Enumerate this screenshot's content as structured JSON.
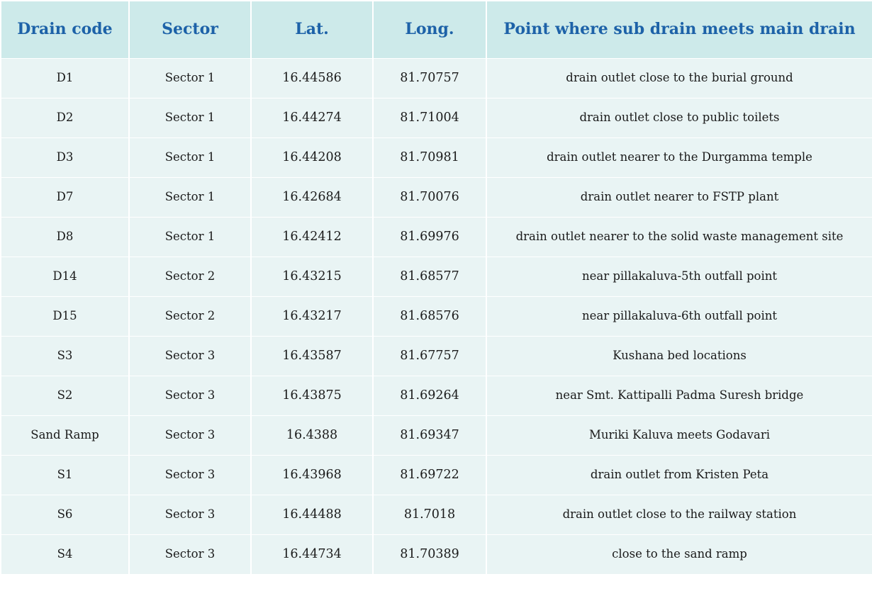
{
  "table": {
    "headers": [
      "Drain code",
      "Sector",
      "Lat.",
      "Long.",
      "Point where sub drain meets main drain"
    ],
    "rows": [
      [
        "D1",
        "Sector 1",
        "16.44586",
        "81.70757",
        "drain outlet close to the burial ground"
      ],
      [
        "D2",
        "Sector 1",
        "16.44274",
        "81.71004",
        "drain outlet close to public toilets"
      ],
      [
        "D3",
        "Sector 1",
        "16.44208",
        "81.70981",
        "drain outlet nearer to the Durgamma temple"
      ],
      [
        "D7",
        "Sector 1",
        "16.42684",
        "81.70076",
        "drain outlet nearer to FSTP plant"
      ],
      [
        "D8",
        "Sector 1",
        "16.42412",
        "81.69976",
        "drain outlet nearer to the solid waste management site"
      ],
      [
        "D14",
        "Sector 2",
        "16.43215",
        "81.68577",
        "near pillakaluva-5th outfall point"
      ],
      [
        "D15",
        "Sector 2",
        "16.43217",
        "81.68576",
        "near pillakaluva-6th outfall point"
      ],
      [
        "S3",
        "Sector 3",
        "16.43587",
        "81.67757",
        "Kushana bed locations"
      ],
      [
        "S2",
        "Sector 3",
        "16.43875",
        "81.69264",
        "near Smt. Kattipalli Padma Suresh bridge"
      ],
      [
        "Sand Ramp",
        "Sector 3",
        "16.4388",
        "81.69347",
        "Muriki Kaluva meets Godavari"
      ],
      [
        "S1",
        "Sector 3",
        "16.43968",
        "81.69722",
        "drain outlet from Kristen Peta"
      ],
      [
        "S6",
        "Sector 3",
        "16.44488",
        "81.7018",
        "drain outlet close to the railway station"
      ],
      [
        "S4",
        "Sector 3",
        "16.44734",
        "81.70389",
        "close to the sand ramp"
      ]
    ]
  },
  "colors": {
    "header_background": "#cdeaea",
    "header_text": "#1d62a8",
    "row_background": "#e9f4f4",
    "cell_text": "#1a1a1a",
    "grid_lines": "#ffffff"
  }
}
